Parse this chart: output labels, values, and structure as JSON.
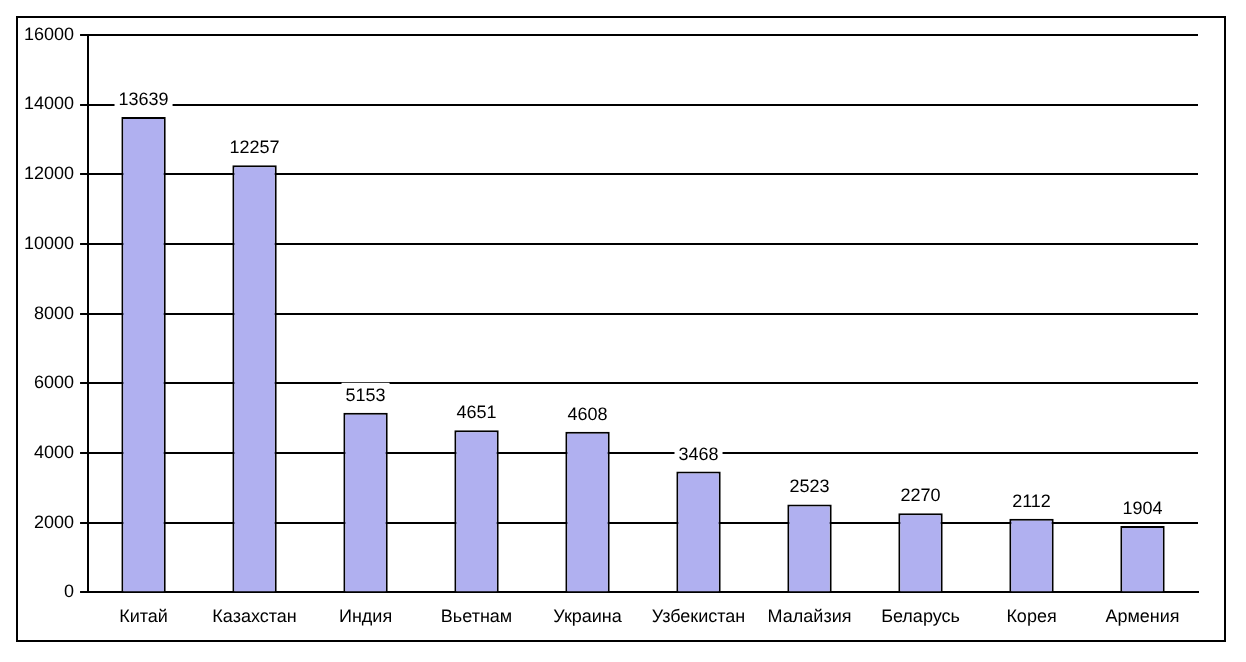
{
  "chart_data": {
    "type": "bar",
    "categories": [
      "Китай",
      "Казахстан",
      "Индия",
      "Вьетнам",
      "Украина",
      "Узбекистан",
      "Малайзия",
      "Беларусь",
      "Корея",
      "Армения"
    ],
    "values": [
      13639,
      12257,
      5153,
      4651,
      4608,
      3468,
      2523,
      2270,
      2112,
      1904
    ],
    "color": "#b0b0f0",
    "ylim": [
      0,
      16000
    ],
    "yticks": [
      0,
      2000,
      4000,
      6000,
      8000,
      10000,
      12000,
      14000,
      16000
    ],
    "grid": "y",
    "data_labels": true,
    "legend": false
  }
}
